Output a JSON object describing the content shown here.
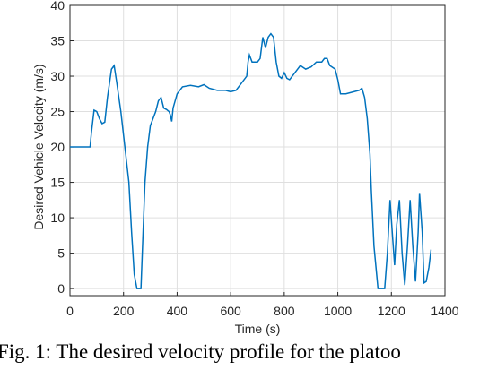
{
  "chart_data": {
    "type": "line",
    "xlabel": "Time (s)",
    "ylabel": "Desired Vehicle Velocity (m/s)",
    "x": [
      0,
      75,
      80,
      90,
      100,
      110,
      120,
      130,
      140,
      155,
      165,
      175,
      190,
      205,
      220,
      230,
      240,
      250,
      265,
      270,
      280,
      290,
      300,
      310,
      320,
      330,
      340,
      350,
      360,
      370,
      375,
      380,
      385,
      400,
      420,
      450,
      480,
      500,
      520,
      550,
      580,
      600,
      620,
      640,
      660,
      665,
      670,
      680,
      700,
      710,
      720,
      730,
      740,
      750,
      760,
      770,
      780,
      790,
      800,
      810,
      820,
      840,
      860,
      880,
      900,
      920,
      940,
      950,
      960,
      970,
      990,
      1000,
      1010,
      1030,
      1060,
      1080,
      1090,
      1100,
      1110,
      1120,
      1125,
      1135,
      1150,
      1175,
      1185,
      1195,
      1205,
      1212,
      1220,
      1230,
      1240,
      1250,
      1260,
      1270,
      1280,
      1290,
      1300,
      1305,
      1315,
      1322,
      1330,
      1340,
      1348
    ],
    "series": [
      {
        "name": "velocity",
        "color": "#0072bd",
        "values": [
          20,
          20,
          22,
          25.2,
          25,
          24,
          23.3,
          23.5,
          27,
          31,
          31.5,
          29,
          25,
          20,
          15,
          8,
          2,
          0,
          0,
          5,
          15,
          20,
          23,
          24,
          25,
          26.5,
          27,
          25.5,
          25.3,
          25,
          24.5,
          23.6,
          25.5,
          27.5,
          28.5,
          28.7,
          28.5,
          28.8,
          28.3,
          28,
          28,
          27.8,
          28,
          29,
          30,
          32,
          33,
          32,
          32,
          32.5,
          35.5,
          34,
          35.5,
          36,
          35.5,
          32,
          30,
          29.7,
          30.5,
          29.7,
          29.5,
          30.5,
          31.5,
          31,
          31.3,
          32,
          32,
          32.5,
          32.5,
          31.5,
          31,
          29.5,
          27.5,
          27.5,
          27.8,
          28,
          28.3,
          27,
          24,
          19,
          14,
          6,
          0,
          0,
          5,
          12.5,
          7,
          3.3,
          9,
          12.5,
          5,
          0.5,
          6,
          12.5,
          6,
          1,
          8,
          13.5,
          8,
          0.8,
          1,
          3,
          5.5
        ]
      }
    ],
    "xlim": [
      0,
      1400
    ],
    "xticks": [
      0,
      200,
      400,
      600,
      800,
      1000,
      1200,
      1400
    ],
    "ylim": [
      -1,
      40
    ],
    "yticks": [
      0,
      5,
      10,
      15,
      20,
      25,
      30,
      35,
      40
    ],
    "grid": true
  },
  "caption": "Fig. 1: The desired velocity profile for the platoo"
}
